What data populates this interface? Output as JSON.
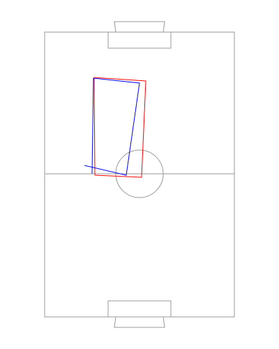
{
  "pitch": {
    "line_color": "#999999",
    "background": "#ffffff"
  },
  "paths": {
    "red": {
      "color": "#ff0000"
    },
    "blue": {
      "color": "#0000ff"
    }
  }
}
